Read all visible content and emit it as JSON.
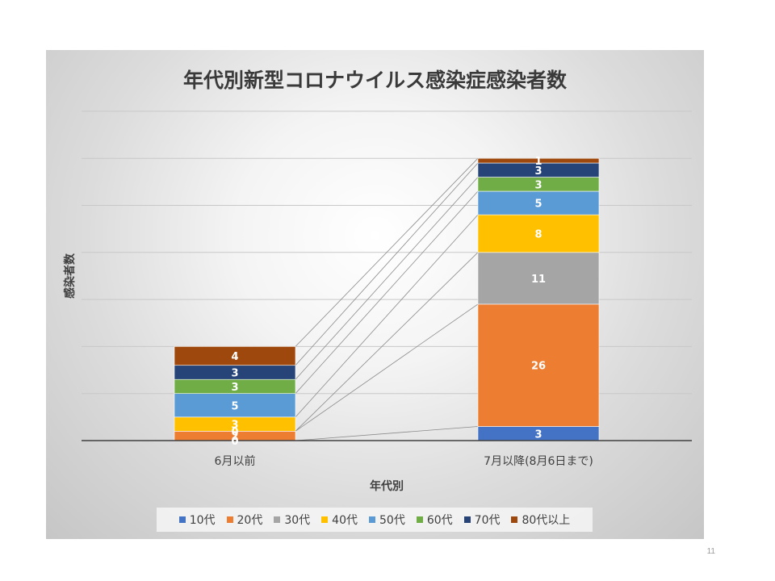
{
  "page": {
    "number": "11"
  },
  "chart_data": {
    "type": "bar",
    "stacked": true,
    "title": "年代別新型コロナウイルス感染症感染者数",
    "xlabel": "年代別",
    "ylabel": "感染者数",
    "categories": [
      "6月以前",
      "7月以降(8月6日まで)"
    ],
    "ylim": [
      0,
      70
    ],
    "grid": true,
    "legend_position": "bottom",
    "series_lines": true,
    "series": [
      {
        "name": "10代",
        "values": [
          0,
          3
        ],
        "color": "#4472c4"
      },
      {
        "name": "20代",
        "values": [
          2,
          26
        ],
        "color": "#ed7d31"
      },
      {
        "name": "30代",
        "values": [
          0,
          11
        ],
        "color": "#a5a5a5"
      },
      {
        "name": "40代",
        "values": [
          3,
          8
        ],
        "color": "#ffc000"
      },
      {
        "name": "50代",
        "values": [
          5,
          5
        ],
        "color": "#5b9bd5"
      },
      {
        "name": "60代",
        "values": [
          3,
          3
        ],
        "color": "#70ad47"
      },
      {
        "name": "70代",
        "values": [
          3,
          3
        ],
        "color": "#264478"
      },
      {
        "name": "80代以上",
        "values": [
          4,
          1
        ],
        "color": "#9e480e"
      }
    ]
  }
}
